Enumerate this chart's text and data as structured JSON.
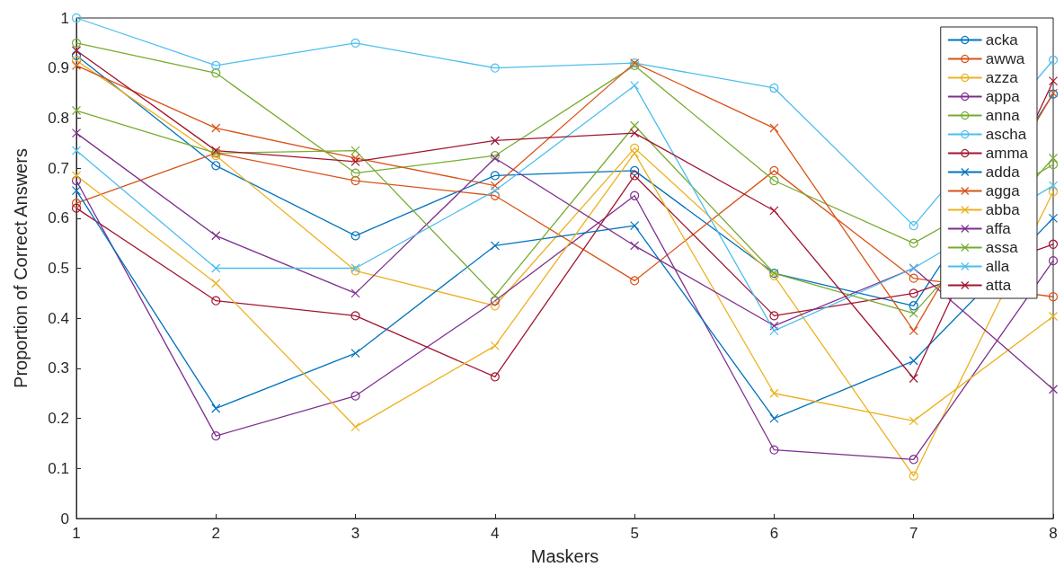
{
  "chart_data": {
    "type": "line",
    "xlabel": "Maskers",
    "ylabel": "Proportion of Correct Answers",
    "x": [
      1,
      2,
      3,
      4,
      5,
      6,
      7,
      8
    ],
    "xlim": [
      1,
      8
    ],
    "xticks": [
      1,
      2,
      3,
      4,
      5,
      6,
      7,
      8
    ],
    "ylim": [
      0,
      1
    ],
    "yticks": [
      0,
      0.1,
      0.2,
      0.3,
      0.4,
      0.5,
      0.6,
      0.7,
      0.8,
      0.9,
      1
    ],
    "grid": false,
    "legend": "top right",
    "line_style": "solid",
    "series": [
      {
        "name": "acka",
        "color": "#0072bd",
        "marker": "circle",
        "values": [
          0.925,
          0.705,
          0.565,
          0.685,
          0.695,
          0.49,
          0.425,
          0.848
        ]
      },
      {
        "name": "awwa",
        "color": "#d95319",
        "marker": "circle",
        "values": [
          0.63,
          0.73,
          0.675,
          0.645,
          0.475,
          0.695,
          0.48,
          0.443
        ]
      },
      {
        "name": "azza",
        "color": "#edb120",
        "marker": "circle",
        "values": [
          0.915,
          0.725,
          0.495,
          0.425,
          0.74,
          0.485,
          0.085,
          0.653
        ]
      },
      {
        "name": "appa",
        "color": "#7e2f8e",
        "marker": "circle",
        "values": [
          0.675,
          0.165,
          0.245,
          0.435,
          0.645,
          0.137,
          0.118,
          0.515
        ]
      },
      {
        "name": "anna",
        "color": "#77ac30",
        "marker": "circle",
        "values": [
          0.95,
          0.89,
          0.69,
          0.725,
          0.905,
          0.675,
          0.55,
          0.707
        ]
      },
      {
        "name": "ascha",
        "color": "#4dbeee",
        "marker": "circle",
        "values": [
          1.0,
          0.905,
          0.95,
          0.9,
          0.91,
          0.86,
          0.585,
          0.916
        ]
      },
      {
        "name": "amma",
        "color": "#a2142f",
        "marker": "circle",
        "values": [
          0.62,
          0.435,
          0.405,
          0.283,
          0.685,
          0.405,
          0.45,
          0.548
        ]
      },
      {
        "name": "adda",
        "color": "#0072bd",
        "marker": "cross",
        "values": [
          0.655,
          0.22,
          0.33,
          0.545,
          0.585,
          0.2,
          0.315,
          0.6
        ]
      },
      {
        "name": "agga",
        "color": "#d95319",
        "marker": "cross",
        "values": [
          0.905,
          0.78,
          0.72,
          0.665,
          0.91,
          0.78,
          0.375,
          0.85
        ]
      },
      {
        "name": "abba",
        "color": "#edb120",
        "marker": "cross",
        "values": [
          0.685,
          0.47,
          0.183,
          0.345,
          0.73,
          0.25,
          0.195,
          0.404
        ]
      },
      {
        "name": "affa",
        "color": "#7e2f8e",
        "marker": "cross",
        "values": [
          0.77,
          0.565,
          0.45,
          0.72,
          0.545,
          0.385,
          0.5,
          0.258
        ]
      },
      {
        "name": "assa",
        "color": "#77ac30",
        "marker": "cross",
        "values": [
          0.815,
          0.73,
          0.735,
          0.445,
          0.785,
          0.49,
          0.41,
          0.72
        ]
      },
      {
        "name": "alla",
        "color": "#4dbeee",
        "marker": "cross",
        "values": [
          0.735,
          0.5,
          0.5,
          0.655,
          0.865,
          0.375,
          0.5,
          0.665
        ]
      },
      {
        "name": "atta",
        "color": "#a2142f",
        "marker": "cross",
        "values": [
          0.935,
          0.735,
          0.713,
          0.755,
          0.77,
          0.615,
          0.28,
          0.874
        ]
      }
    ]
  }
}
